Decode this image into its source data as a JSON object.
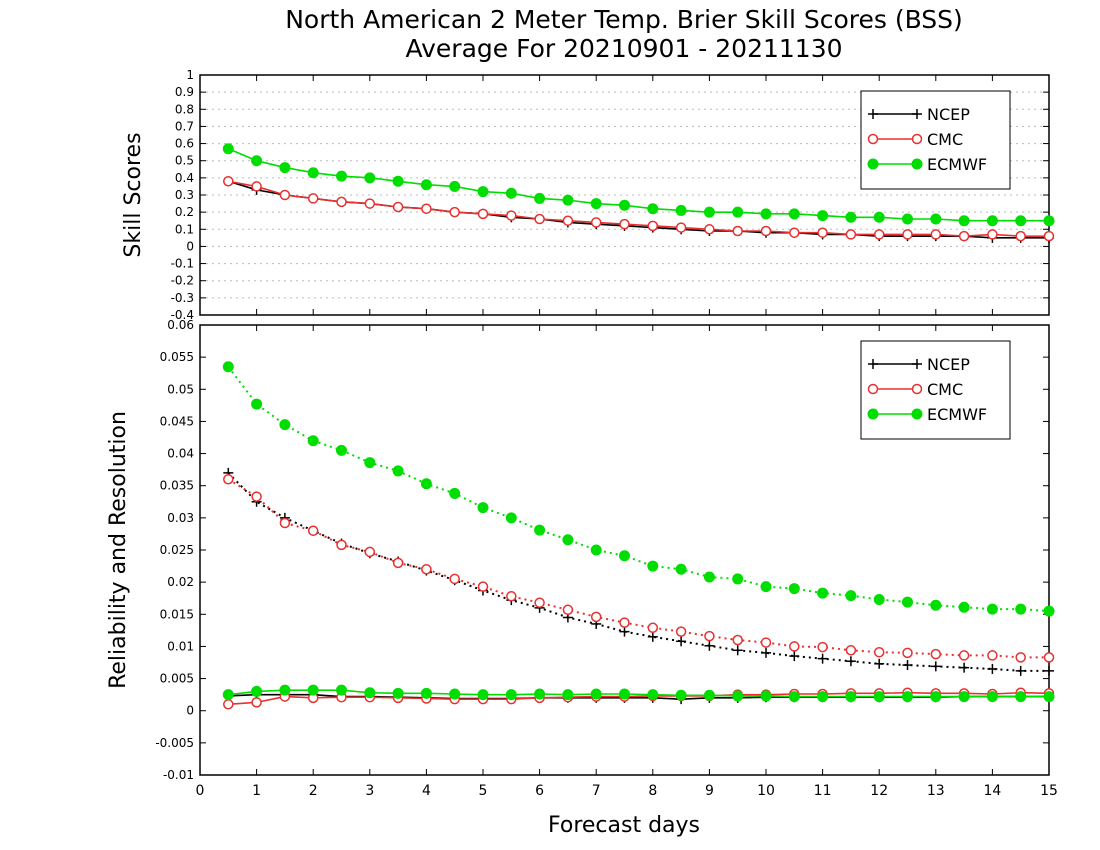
{
  "figure": {
    "title_line1": "North American 2 Meter Temp. Brier Skill Scores (BSS)",
    "title_line2": "Average For 20210901 - 20211130",
    "xlabel": "Forecast days"
  },
  "colors": {
    "NCEP": "#000000",
    "CMC": "#e83030",
    "ECMWF": "#00dd00",
    "grid": "#bbbbbb"
  },
  "chart_data": [
    {
      "type": "line",
      "panel": "top",
      "ylabel": "Skill Scores",
      "xlim": [
        0,
        15
      ],
      "ylim": [
        -0.4,
        1
      ],
      "yticks": [
        -0.4,
        -0.3,
        -0.2,
        -0.1,
        0,
        0.1,
        0.2,
        0.3,
        0.4,
        0.5,
        0.6,
        0.7,
        0.8,
        0.9,
        1
      ],
      "ytick_labels": [
        "-0.4",
        "-0.3",
        "-0.2",
        "-0.1",
        "0",
        "0.1",
        "0.2",
        "0.3",
        "0.4",
        "0.5",
        "0.6",
        "0.7",
        "0.8",
        "0.9",
        "1"
      ],
      "xticks": [
        0,
        1,
        2,
        3,
        4,
        5,
        6,
        7,
        8,
        9,
        10,
        11,
        12,
        13,
        14,
        15
      ],
      "xtick_labels": [
        "0",
        "1",
        "2",
        "3",
        "4",
        "5",
        "6",
        "7",
        "8",
        "9",
        "10",
        "11",
        "12",
        "13",
        "14",
        "15"
      ],
      "grid": true,
      "legend": {
        "placement": "top-right",
        "entries": [
          "NCEP",
          "CMC",
          "ECMWF"
        ]
      },
      "x": [
        0.5,
        1,
        1.5,
        2,
        2.5,
        3,
        3.5,
        4,
        4.5,
        5,
        5.5,
        6,
        6.5,
        7,
        7.5,
        8,
        8.5,
        9,
        9.5,
        10,
        10.5,
        11,
        11.5,
        12,
        12.5,
        13,
        13.5,
        14,
        14.5,
        15
      ],
      "series": [
        {
          "name": "NCEP",
          "marker": "plus",
          "style": "solid",
          "values": [
            0.38,
            0.33,
            0.3,
            0.28,
            0.26,
            0.25,
            0.23,
            0.22,
            0.2,
            0.19,
            0.17,
            0.16,
            0.14,
            0.13,
            0.12,
            0.11,
            0.1,
            0.09,
            0.09,
            0.08,
            0.08,
            0.07,
            0.07,
            0.06,
            0.06,
            0.06,
            0.06,
            0.05,
            0.05,
            0.05
          ]
        },
        {
          "name": "CMC",
          "marker": "open-circle",
          "style": "solid",
          "values": [
            0.38,
            0.35,
            0.3,
            0.28,
            0.26,
            0.25,
            0.23,
            0.22,
            0.2,
            0.19,
            0.18,
            0.16,
            0.15,
            0.14,
            0.13,
            0.12,
            0.11,
            0.1,
            0.09,
            0.09,
            0.08,
            0.08,
            0.07,
            0.07,
            0.07,
            0.07,
            0.06,
            0.07,
            0.06,
            0.06
          ]
        },
        {
          "name": "ECMWF",
          "marker": "filled-circle",
          "style": "solid",
          "values": [
            0.57,
            0.5,
            0.46,
            0.43,
            0.41,
            0.4,
            0.38,
            0.36,
            0.35,
            0.32,
            0.31,
            0.28,
            0.27,
            0.25,
            0.24,
            0.22,
            0.21,
            0.2,
            0.2,
            0.19,
            0.19,
            0.18,
            0.17,
            0.17,
            0.16,
            0.16,
            0.15,
            0.15,
            0.15,
            0.15
          ]
        }
      ]
    },
    {
      "type": "line",
      "panel": "bottom",
      "ylabel": "Reliability and Resolution",
      "xlabel": "Forecast days",
      "xlim": [
        0,
        15
      ],
      "ylim": [
        -0.01,
        0.06
      ],
      "yticks": [
        -0.01,
        -0.005,
        0,
        0.005,
        0.01,
        0.015,
        0.02,
        0.025,
        0.03,
        0.035,
        0.04,
        0.045,
        0.05,
        0.055,
        0.06
      ],
      "ytick_labels": [
        "-0.01",
        "-0.005",
        "0",
        "0.005",
        "0.01",
        "0.015",
        "0.02",
        "0.025",
        "0.03",
        "0.035",
        "0.04",
        "0.045",
        "0.05",
        "0.055",
        "0.06"
      ],
      "xticks": [
        0,
        1,
        2,
        3,
        4,
        5,
        6,
        7,
        8,
        9,
        10,
        11,
        12,
        13,
        14,
        15
      ],
      "xtick_labels": [
        "0",
        "1",
        "2",
        "3",
        "4",
        "5",
        "6",
        "7",
        "8",
        "9",
        "10",
        "11",
        "12",
        "13",
        "14",
        "15"
      ],
      "grid": false,
      "legend": {
        "placement": "top-right",
        "entries": [
          "NCEP",
          "CMC",
          "ECMWF"
        ]
      },
      "x": [
        0.5,
        1,
        1.5,
        2,
        2.5,
        3,
        3.5,
        4,
        4.5,
        5,
        5.5,
        6,
        6.5,
        7,
        7.5,
        8,
        8.5,
        9,
        9.5,
        10,
        10.5,
        11,
        11.5,
        12,
        12.5,
        13,
        13.5,
        14,
        14.5,
        15
      ],
      "series": [
        {
          "name": "NCEP",
          "marker": "plus",
          "style": "dotted",
          "role": "resolution",
          "values": [
            0.037,
            0.0325,
            0.03,
            0.028,
            0.026,
            0.0245,
            0.0232,
            0.0218,
            0.0203,
            0.0187,
            0.0172,
            0.016,
            0.0145,
            0.0135,
            0.0123,
            0.0115,
            0.0108,
            0.0101,
            0.0094,
            0.009,
            0.0085,
            0.0081,
            0.0077,
            0.0073,
            0.0071,
            0.0069,
            0.0067,
            0.0065,
            0.0062,
            0.0062
          ]
        },
        {
          "name": "CMC",
          "marker": "open-circle",
          "style": "dotted",
          "role": "resolution",
          "values": [
            0.036,
            0.0333,
            0.0292,
            0.028,
            0.0258,
            0.0247,
            0.023,
            0.022,
            0.0205,
            0.0193,
            0.0178,
            0.0168,
            0.0157,
            0.0146,
            0.0137,
            0.0129,
            0.0123,
            0.0116,
            0.011,
            0.0106,
            0.01,
            0.0099,
            0.0094,
            0.0091,
            0.009,
            0.0088,
            0.0086,
            0.0086,
            0.0083,
            0.0083
          ]
        },
        {
          "name": "ECMWF",
          "marker": "filled-circle",
          "style": "dotted",
          "role": "resolution",
          "values": [
            0.0535,
            0.0477,
            0.0445,
            0.042,
            0.0405,
            0.0386,
            0.0373,
            0.0353,
            0.0338,
            0.0316,
            0.03,
            0.0281,
            0.0266,
            0.025,
            0.0241,
            0.0225,
            0.022,
            0.0208,
            0.0205,
            0.0193,
            0.019,
            0.0183,
            0.0179,
            0.0173,
            0.0169,
            0.0164,
            0.0161,
            0.0158,
            0.0158,
            0.0155
          ]
        },
        {
          "name": "NCEP",
          "marker": "plus",
          "style": "solid",
          "role": "reliability",
          "values": [
            0.0023,
            0.0025,
            0.0025,
            0.0025,
            0.0022,
            0.0022,
            0.0021,
            0.002,
            0.0019,
            0.0019,
            0.0019,
            0.002,
            0.002,
            0.002,
            0.002,
            0.002,
            0.0018,
            0.002,
            0.002,
            0.0021,
            0.0021,
            0.0021,
            0.0021,
            0.0021,
            0.0021,
            0.0021,
            0.0022,
            0.0022,
            0.0022,
            0.0022
          ]
        },
        {
          "name": "CMC",
          "marker": "open-circle",
          "style": "solid",
          "role": "reliability",
          "values": [
            0.001,
            0.0013,
            0.0022,
            0.002,
            0.0021,
            0.0021,
            0.002,
            0.0019,
            0.0018,
            0.0018,
            0.0018,
            0.002,
            0.0021,
            0.0022,
            0.0022,
            0.0023,
            0.0023,
            0.0023,
            0.0025,
            0.0025,
            0.0026,
            0.0026,
            0.0027,
            0.0027,
            0.0028,
            0.0027,
            0.0027,
            0.0026,
            0.0028,
            0.0027
          ]
        },
        {
          "name": "ECMWF",
          "marker": "filled-circle",
          "style": "solid",
          "role": "reliability",
          "values": [
            0.0025,
            0.003,
            0.0032,
            0.0032,
            0.0032,
            0.0028,
            0.0027,
            0.0027,
            0.0026,
            0.0025,
            0.0025,
            0.0026,
            0.0025,
            0.0026,
            0.0026,
            0.0025,
            0.0024,
            0.0024,
            0.0023,
            0.0023,
            0.0022,
            0.0022,
            0.0022,
            0.0022,
            0.0022,
            0.0022,
            0.0022,
            0.0022,
            0.0022,
            0.0022
          ]
        }
      ]
    }
  ]
}
